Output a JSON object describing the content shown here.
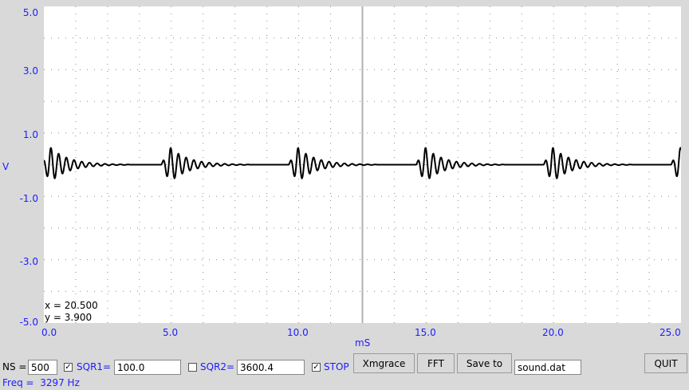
{
  "chart_data": {
    "type": "line",
    "xlabel": "mS",
    "ylabel": "V",
    "xlim": [
      0,
      25
    ],
    "ylim": [
      -5,
      5
    ],
    "x_ticks": [
      "0.0",
      "5.0",
      "10.0",
      "15.0",
      "20.0",
      "25.0"
    ],
    "y_ticks": [
      "5.0",
      "3.0",
      "1.0",
      "-1.0",
      "-3.0",
      "-5.0"
    ],
    "grid": "dotted",
    "cursor_x": 12.5,
    "waveform": {
      "description_units": "mS",
      "burst_starts": [
        -0.1,
        4.6,
        9.6,
        14.6,
        19.6,
        24.6
      ],
      "burst_peak_amplitude": 0.55,
      "ringing_frequency_khz": 3.3,
      "baseline": 0.0
    },
    "series": [
      {
        "color": "#000000"
      }
    ]
  },
  "readout": {
    "x_text": "x = 20.500",
    "y_text": "y = 3.900"
  },
  "controls": {
    "ns_label": "NS =",
    "ns_value": "500",
    "sqr1_label": "SQR1=",
    "sqr1_value": "100.0",
    "sqr1_checked": true,
    "sqr2_label": "SQR2=",
    "sqr2_value": "3600.4",
    "sqr2_checked": false,
    "stop_label": "STOP",
    "stop_checked": true,
    "xmgrace_label": "Xmgrace",
    "fft_label": "FFT",
    "saveto_label": "Save to",
    "filename_value": "sound.dat",
    "quit_label": "QUIT",
    "freq_text": "Freq =  3297 Hz"
  },
  "colors": {
    "label_blue": "#1c1cff",
    "plot_bg": "#ffffff",
    "window_bg": "#d9d9d9"
  }
}
